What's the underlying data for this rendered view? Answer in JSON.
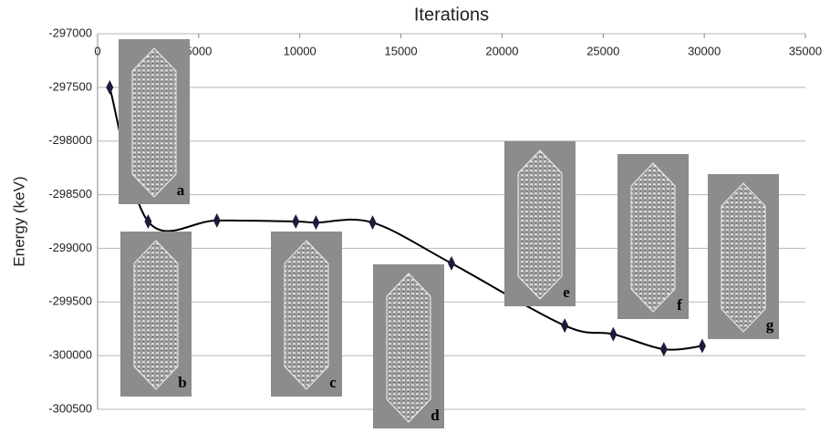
{
  "chart_data": {
    "type": "line",
    "title": "Iterations",
    "y_label": "Energy (keV)",
    "x": [
      600,
      2500,
      5900,
      9800,
      10800,
      13600,
      17500,
      23100,
      25500,
      28000,
      29900
    ],
    "series": [
      {
        "color": "#000000",
        "values": [
          -297500,
          -298750,
          -298740,
          -298750,
          -298760,
          -298760,
          -299140,
          -299720,
          -299800,
          -299940,
          -299910
        ]
      }
    ],
    "xlim": [
      0,
      35000
    ],
    "xticks": [
      0,
      5000,
      10000,
      15000,
      20000,
      25000,
      30000,
      35000
    ],
    "ylim": [
      -300500,
      -297000
    ],
    "yticks": [
      -297000,
      -297500,
      -298000,
      -298500,
      -299000,
      -299500,
      -300000,
      -300500
    ],
    "grid": true,
    "insets": [
      "a",
      "b",
      "c",
      "d",
      "e",
      "f",
      "g"
    ]
  }
}
